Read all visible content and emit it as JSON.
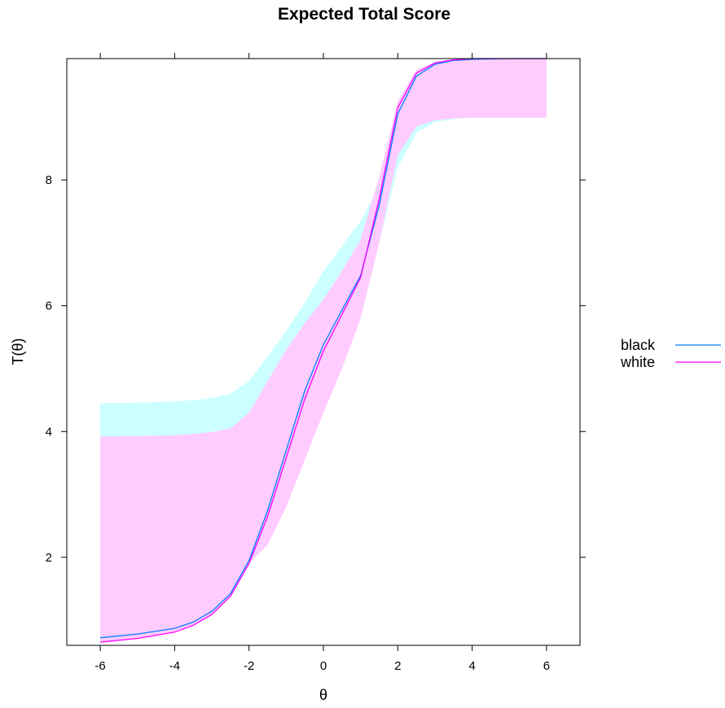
{
  "chart_data": {
    "type": "line",
    "title": "Expected Total Score",
    "xlabel": "θ",
    "ylabel": "T(θ)",
    "xlim": [
      -6.9,
      6.9
    ],
    "ylim": [
      0.6,
      9.93
    ],
    "x_ticks": [
      -6,
      -4,
      -2,
      0,
      2,
      4,
      6
    ],
    "x_tick_labels": [
      "-6",
      "-4",
      "-2",
      "0",
      "2",
      "4",
      "6"
    ],
    "y_ticks": [
      2,
      4,
      6,
      8
    ],
    "y_tick_labels": [
      "2",
      "4",
      "6",
      "8"
    ],
    "legend_position": "right",
    "series": [
      {
        "name": "black",
        "color": "#0080ff",
        "band_color": "#ccffff",
        "x": [
          -6,
          -5,
          -4,
          -3.5,
          -3,
          -2.5,
          -2,
          -1.5,
          -1,
          -0.5,
          0,
          0.5,
          1,
          1.5,
          2,
          2.5,
          3,
          3.5,
          4,
          5,
          6
        ],
        "y": [
          0.72,
          0.78,
          0.87,
          0.97,
          1.14,
          1.42,
          1.95,
          2.74,
          3.7,
          4.65,
          5.38,
          5.93,
          6.48,
          7.6,
          9.05,
          9.65,
          9.84,
          9.9,
          9.92,
          9.93,
          9.93
        ],
        "lower": [
          0.72,
          0.78,
          0.87,
          0.97,
          1.14,
          1.42,
          1.95,
          2.5,
          3.2,
          4.0,
          4.8,
          5.4,
          6.0,
          7.0,
          8.2,
          8.75,
          8.92,
          8.97,
          8.99,
          9.0,
          9.0
        ],
        "upper": [
          4.45,
          4.46,
          4.48,
          4.5,
          4.53,
          4.6,
          4.8,
          5.2,
          5.6,
          6.05,
          6.55,
          6.95,
          7.35,
          7.9,
          9.1,
          9.7,
          9.86,
          9.9,
          9.92,
          9.93,
          9.93
        ]
      },
      {
        "name": "white",
        "color": "#ff00ff",
        "band_color": "#ffccff",
        "x": [
          -6,
          -5,
          -4,
          -3.5,
          -3,
          -2.5,
          -2,
          -1.5,
          -1,
          -0.5,
          0,
          0.5,
          1,
          1.5,
          2,
          2.5,
          3,
          3.5,
          4,
          5,
          6
        ],
        "y": [
          0.65,
          0.71,
          0.81,
          0.92,
          1.09,
          1.38,
          1.9,
          2.65,
          3.58,
          4.52,
          5.28,
          5.86,
          6.45,
          7.7,
          9.15,
          9.7,
          9.86,
          9.91,
          9.93,
          9.93,
          9.93
        ],
        "lower": [
          0.65,
          0.71,
          0.81,
          0.92,
          1.09,
          1.38,
          1.9,
          2.2,
          2.8,
          3.55,
          4.3,
          5.0,
          5.8,
          7.0,
          8.4,
          8.85,
          8.95,
          8.98,
          8.99,
          8.99,
          8.99
        ],
        "upper": [
          3.92,
          3.93,
          3.94,
          3.96,
          3.99,
          4.05,
          4.3,
          4.8,
          5.3,
          5.72,
          6.1,
          6.55,
          7.05,
          8.05,
          9.25,
          9.75,
          9.88,
          9.92,
          9.93,
          9.93,
          9.93
        ]
      }
    ]
  }
}
